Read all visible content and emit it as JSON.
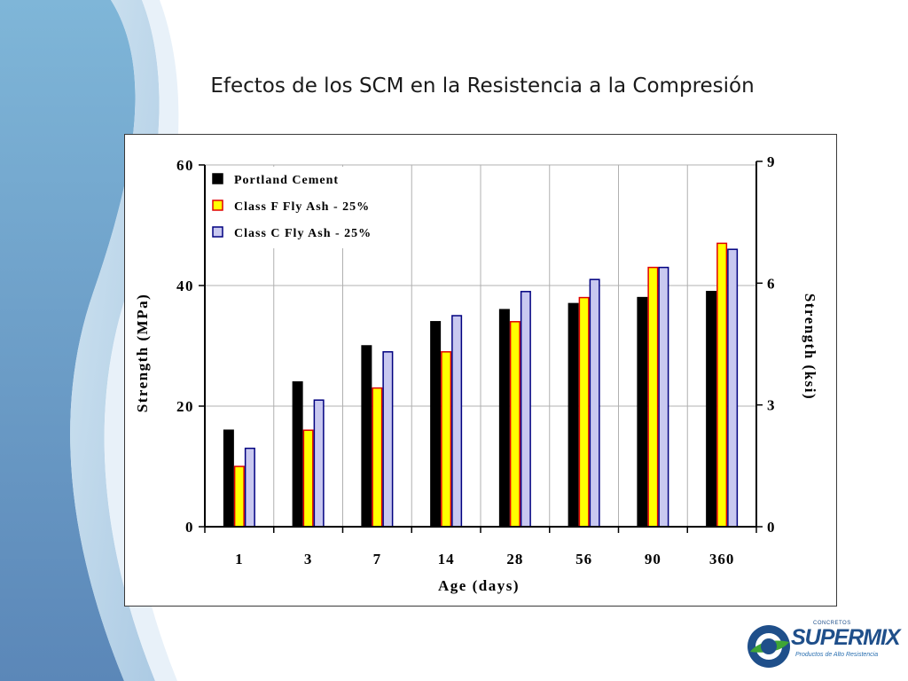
{
  "slide": {
    "title": "Efectos de los SCM en la Resistencia a la Compresión"
  },
  "logo": {
    "small_text": "CONCRETOS",
    "brand": "SUPERMIX",
    "tagline": "Productos de Alto Resistencia"
  },
  "chart_data": {
    "type": "bar",
    "title": "",
    "xlabel": "Age (days)",
    "ylabel": "Strength (MPa)",
    "ylabel_right": "Strength (ksi)",
    "categories": [
      "1",
      "3",
      "7",
      "14",
      "28",
      "56",
      "90",
      "360"
    ],
    "ylim": [
      0,
      60
    ],
    "yticks": [
      "0",
      "20",
      "40",
      "60"
    ],
    "ylim_right": [
      0,
      9
    ],
    "yticks_right": [
      "0",
      "3",
      "6",
      "9"
    ],
    "grid": true,
    "legend_position": "top-left",
    "series": [
      {
        "name": "Portland Cement",
        "values": [
          16,
          24,
          30,
          34,
          36,
          37,
          38,
          39
        ],
        "fill": "#000000",
        "stroke": "#000000"
      },
      {
        "name": "Class F Fly Ash - 25%",
        "values": [
          10,
          16,
          23,
          29,
          34,
          38,
          43,
          47
        ],
        "fill": "#ffff00",
        "stroke": "#e00000"
      },
      {
        "name": "Class C Fly Ash - 25%",
        "values": [
          13,
          21,
          29,
          35,
          39,
          41,
          43,
          46
        ],
        "fill": "#c8c8f0",
        "stroke": "#000080"
      }
    ]
  }
}
